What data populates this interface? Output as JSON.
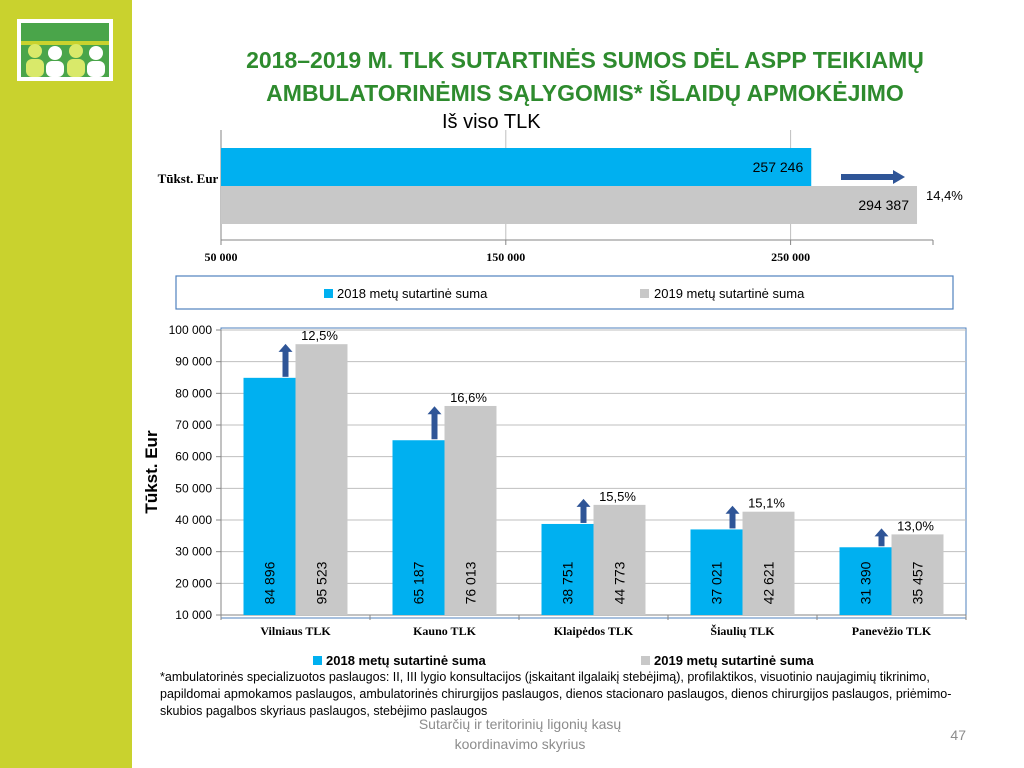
{
  "header": {
    "title_line1": "2018–2019 M. TLK SUTARTINĖS SUMOS DĖL ASPP TEIKIAMŲ",
    "title_line2": "AMBULATORINĖMIS SĄLYGOMIS* IŠLAIDŲ APMOKĖJIMO"
  },
  "colors": {
    "sidebar": "#c9d22e",
    "title": "#2e8b2e",
    "series_2018": "#00b0f0",
    "series_2019": "#c8c8c8",
    "arrow": "#2f5597"
  },
  "icons": {
    "logo": "people-group-logo-icon",
    "growth_arrow": "arrow-icon"
  },
  "chart_data": [
    {
      "type": "bar",
      "orientation": "horizontal",
      "title": "Iš viso TLK",
      "ylabel": "Tūkst. Eur",
      "xlim": [
        50000,
        300000
      ],
      "xticks": [
        "50 000",
        "150 000",
        "250 000"
      ],
      "grid": true,
      "legend_position": "bottom",
      "series": [
        {
          "name": "2018 metų sutartinė suma",
          "value": 257246,
          "label": "257 246"
        },
        {
          "name": "2019 metų sutartinė suma",
          "value": 294387,
          "label": "294 387"
        }
      ],
      "change_label": "14,4%"
    },
    {
      "type": "bar",
      "orientation": "vertical",
      "ylabel": "Tūkst. Eur",
      "ylim": [
        10000,
        100000
      ],
      "yticks": [
        "10 000",
        "20 000",
        "30 000",
        "40 000",
        "50 000",
        "60 000",
        "70 000",
        "80 000",
        "90 000",
        "100 000"
      ],
      "grid": true,
      "legend_position": "bottom",
      "categories": [
        "Vilniaus TLK",
        "Kauno TLK",
        "Klaipėdos TLK",
        "Šiaulių TLK",
        "Panevėžio TLK"
      ],
      "series": [
        {
          "name": "2018 metų sutartinė suma",
          "values": [
            84896,
            65187,
            38751,
            37021,
            31390
          ],
          "labels": [
            "84 896",
            "65 187",
            "38 751",
            "37 021",
            "31 390"
          ]
        },
        {
          "name": "2019 metų sutartinė suma",
          "values": [
            95523,
            76013,
            44773,
            42621,
            35457
          ],
          "labels": [
            "95 523",
            "76 013",
            "44 773",
            "42 621",
            "35 457"
          ]
        }
      ],
      "change_labels": [
        "12,5%",
        "16,6%",
        "15,5%",
        "15,1%",
        "13,0%"
      ]
    }
  ],
  "footnote": "*ambulatorinės specializuotos paslaugos: II, III lygio konsultacijos (įskaitant ilgalaikį stebėjimą), profilaktikos, visuotinio naujagimių tikrinimo, papildomai apmokamos paslaugos, ambulatorinės chirurgijos paslaugos, dienos stacionaro paslaugos, dienos chirurgijos paslaugos, priėmimo-skubios pagalbos skyriaus paslaugos, stebėjimo paslaugos",
  "footer": {
    "line1": "Sutarčių ir teritorinių ligonių kasų",
    "line2": "koordinavimo skyrius",
    "page": "47"
  }
}
